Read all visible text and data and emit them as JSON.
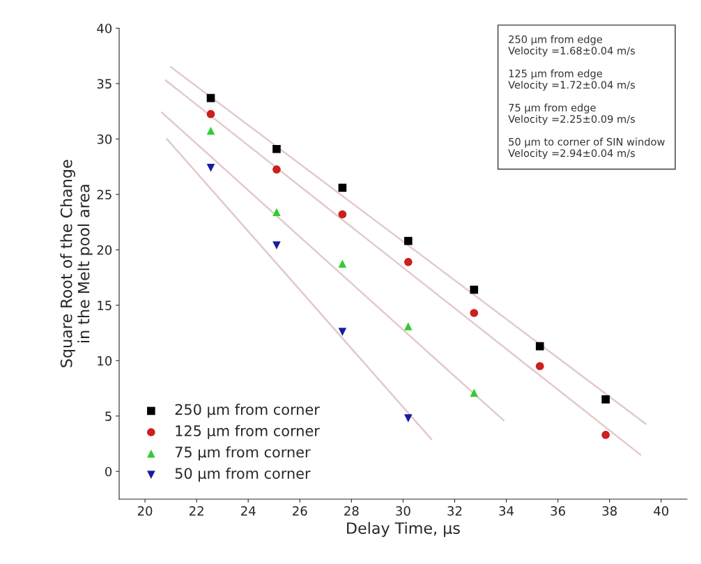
{
  "chart_data": {
    "type": "scatter",
    "xlabel": "Delay Time, μs",
    "ylabel": "Square Root of the Change\nin the Melt pool area",
    "xlim": [
      19,
      41
    ],
    "ylim": [
      -2.5,
      40
    ],
    "xticks": [
      20,
      22,
      24,
      26,
      28,
      30,
      32,
      34,
      36,
      38,
      40
    ],
    "yticks": [
      0,
      5,
      10,
      15,
      20,
      25,
      30,
      35,
      40
    ],
    "grid": false,
    "legend": "bottom left",
    "series": [
      {
        "name": "250 μm from corner",
        "color": "#000000",
        "marker": "square",
        "x": [
          22.55,
          25.1,
          27.65,
          30.2,
          32.75,
          35.3,
          37.85
        ],
        "values": [
          33.7,
          29.1,
          25.6,
          20.8,
          16.4,
          11.3,
          6.5
        ]
      },
      {
        "name": "125 μm from corner",
        "color": "#cc1f1f",
        "marker": "circle",
        "x": [
          22.55,
          25.1,
          27.65,
          30.2,
          32.75,
          35.3,
          37.85
        ],
        "values": [
          32.25,
          27.25,
          23.2,
          18.9,
          14.3,
          9.5,
          3.3
        ]
      },
      {
        "name": "75 μm from corner",
        "color": "#33cc33",
        "marker": "triangle",
        "x": [
          22.55,
          25.1,
          27.65,
          30.2,
          32.75
        ],
        "values": [
          30.75,
          23.4,
          18.75,
          13.1,
          7.1
        ]
      },
      {
        "name": "50 μm from corner",
        "color": "#1a1aa0",
        "marker": "triangle_down",
        "x": [
          22.55,
          25.1,
          27.65,
          30.2
        ],
        "values": [
          27.4,
          20.4,
          12.6,
          4.8
        ]
      },
      {
        "type": "line",
        "color": "#e3c9c9",
        "x": [
          21.0,
          39.4
        ],
        "values": [
          36.5,
          4.3
        ]
      },
      {
        "type": "line",
        "color": "#e3c9c9",
        "x": [
          20.8,
          39.2
        ],
        "values": [
          35.3,
          1.5
        ]
      },
      {
        "type": "line",
        "color": "#e3c9c9",
        "x": [
          20.65,
          33.9
        ],
        "values": [
          32.4,
          4.6
        ]
      },
      {
        "type": "line",
        "color": "#e3c9c9",
        "x": [
          20.85,
          31.1
        ],
        "values": [
          30.0,
          2.9
        ]
      }
    ],
    "annotations": [
      "250 μm from edge\nVelocity =1.68±0.04 m/s",
      "125 μm from edge\nVelocity =1.72±0.04 m/s",
      "75 μm from edge\nVelocity =2.25±0.09 m/s",
      "50 μm to corner of SIN window\nVelocity =2.94±0.04 m/s"
    ]
  }
}
